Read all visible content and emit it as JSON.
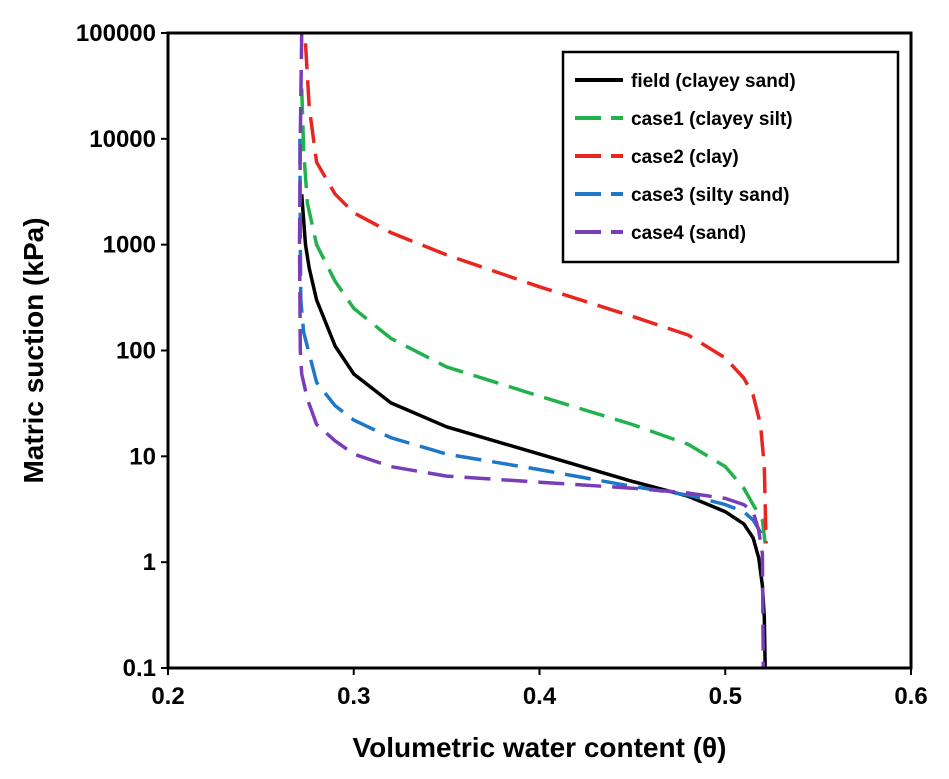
{
  "chart_data": {
    "type": "line",
    "title": "",
    "xlabel": "Volumetric water content (θ)",
    "ylabel": "Matric suction (kPa)",
    "xlim": [
      0.2,
      0.6
    ],
    "ylim": [
      0.1,
      100000
    ],
    "yscale": "log",
    "grid": false,
    "legend": "top-right",
    "x_ticks": [
      0.2,
      0.3,
      0.4,
      0.5,
      0.6
    ],
    "x_tick_labels": [
      "0.2",
      "0.3",
      "0.4",
      "0.5",
      "0.6"
    ],
    "y_ticks": [
      0.1,
      1,
      10,
      100,
      1000,
      10000,
      100000
    ],
    "y_tick_labels": [
      "0.1",
      "1",
      "10",
      "100",
      "1000",
      "10000",
      "100000"
    ],
    "series": [
      {
        "name": "field (clayey sand)",
        "color": "#000000",
        "dash": "solid",
        "points": [
          [
            0.272,
            3000
          ],
          [
            0.274,
            1000
          ],
          [
            0.276,
            600
          ],
          [
            0.28,
            300
          ],
          [
            0.29,
            110
          ],
          [
            0.3,
            60
          ],
          [
            0.32,
            32
          ],
          [
            0.35,
            19
          ],
          [
            0.4,
            10.5
          ],
          [
            0.45,
            5.8
          ],
          [
            0.48,
            4.2
          ],
          [
            0.5,
            3.0
          ],
          [
            0.51,
            2.3
          ],
          [
            0.515,
            1.7
          ],
          [
            0.518,
            1.1
          ],
          [
            0.52,
            0.6
          ],
          [
            0.521,
            0.3
          ],
          [
            0.5215,
            0.1
          ]
        ]
      },
      {
        "name": "case1 (clayey silt)",
        "color": "#22b14c",
        "dash": "dashed",
        "points": [
          [
            0.272,
            30000
          ],
          [
            0.273,
            8000
          ],
          [
            0.275,
            2500
          ],
          [
            0.28,
            1000
          ],
          [
            0.29,
            450
          ],
          [
            0.3,
            250
          ],
          [
            0.32,
            130
          ],
          [
            0.35,
            70
          ],
          [
            0.4,
            37
          ],
          [
            0.45,
            20
          ],
          [
            0.48,
            13
          ],
          [
            0.5,
            8
          ],
          [
            0.51,
            5
          ],
          [
            0.515,
            3.5
          ],
          [
            0.52,
            2.5
          ],
          [
            0.5215,
            1.5
          ]
        ]
      },
      {
        "name": "case2 (clay)",
        "color": "#e8261f",
        "dash": "dashed",
        "points": [
          [
            0.274,
            80000
          ],
          [
            0.276,
            20000
          ],
          [
            0.28,
            6000
          ],
          [
            0.29,
            3000
          ],
          [
            0.3,
            2000
          ],
          [
            0.32,
            1300
          ],
          [
            0.35,
            800
          ],
          [
            0.4,
            400
          ],
          [
            0.45,
            210
          ],
          [
            0.48,
            140
          ],
          [
            0.5,
            85
          ],
          [
            0.51,
            55
          ],
          [
            0.515,
            38
          ],
          [
            0.519,
            20
          ],
          [
            0.521,
            8
          ],
          [
            0.522,
            1.5
          ]
        ]
      },
      {
        "name": "case3 (silty sand)",
        "color": "#1f77c8",
        "dash": "dashed",
        "points": [
          [
            0.271,
            10000
          ],
          [
            0.2712,
            1000
          ],
          [
            0.2715,
            300
          ],
          [
            0.273,
            150
          ],
          [
            0.28,
            50
          ],
          [
            0.29,
            30
          ],
          [
            0.3,
            22
          ],
          [
            0.32,
            15
          ],
          [
            0.35,
            10.5
          ],
          [
            0.4,
            7.5
          ],
          [
            0.45,
            5.2
          ],
          [
            0.48,
            4.3
          ],
          [
            0.5,
            3.5
          ],
          [
            0.51,
            3.0
          ],
          [
            0.515,
            2.5
          ],
          [
            0.52,
            1.8
          ]
        ]
      },
      {
        "name": "case4 (sand)",
        "color": "#7a3db8",
        "dash": "dashed",
        "points": [
          [
            0.272,
            100000
          ],
          [
            0.2712,
            10000
          ],
          [
            0.2708,
            1000
          ],
          [
            0.2712,
            100
          ],
          [
            0.272,
            60
          ],
          [
            0.275,
            35
          ],
          [
            0.28,
            20
          ],
          [
            0.29,
            14
          ],
          [
            0.3,
            10.5
          ],
          [
            0.32,
            8
          ],
          [
            0.35,
            6.5
          ],
          [
            0.4,
            5.7
          ],
          [
            0.45,
            5.0
          ],
          [
            0.48,
            4.5
          ],
          [
            0.5,
            4.0
          ],
          [
            0.51,
            3.5
          ],
          [
            0.515,
            3.0
          ],
          [
            0.518,
            2.0
          ],
          [
            0.52,
            1.2
          ],
          [
            0.5205,
            0.1
          ]
        ]
      }
    ]
  }
}
